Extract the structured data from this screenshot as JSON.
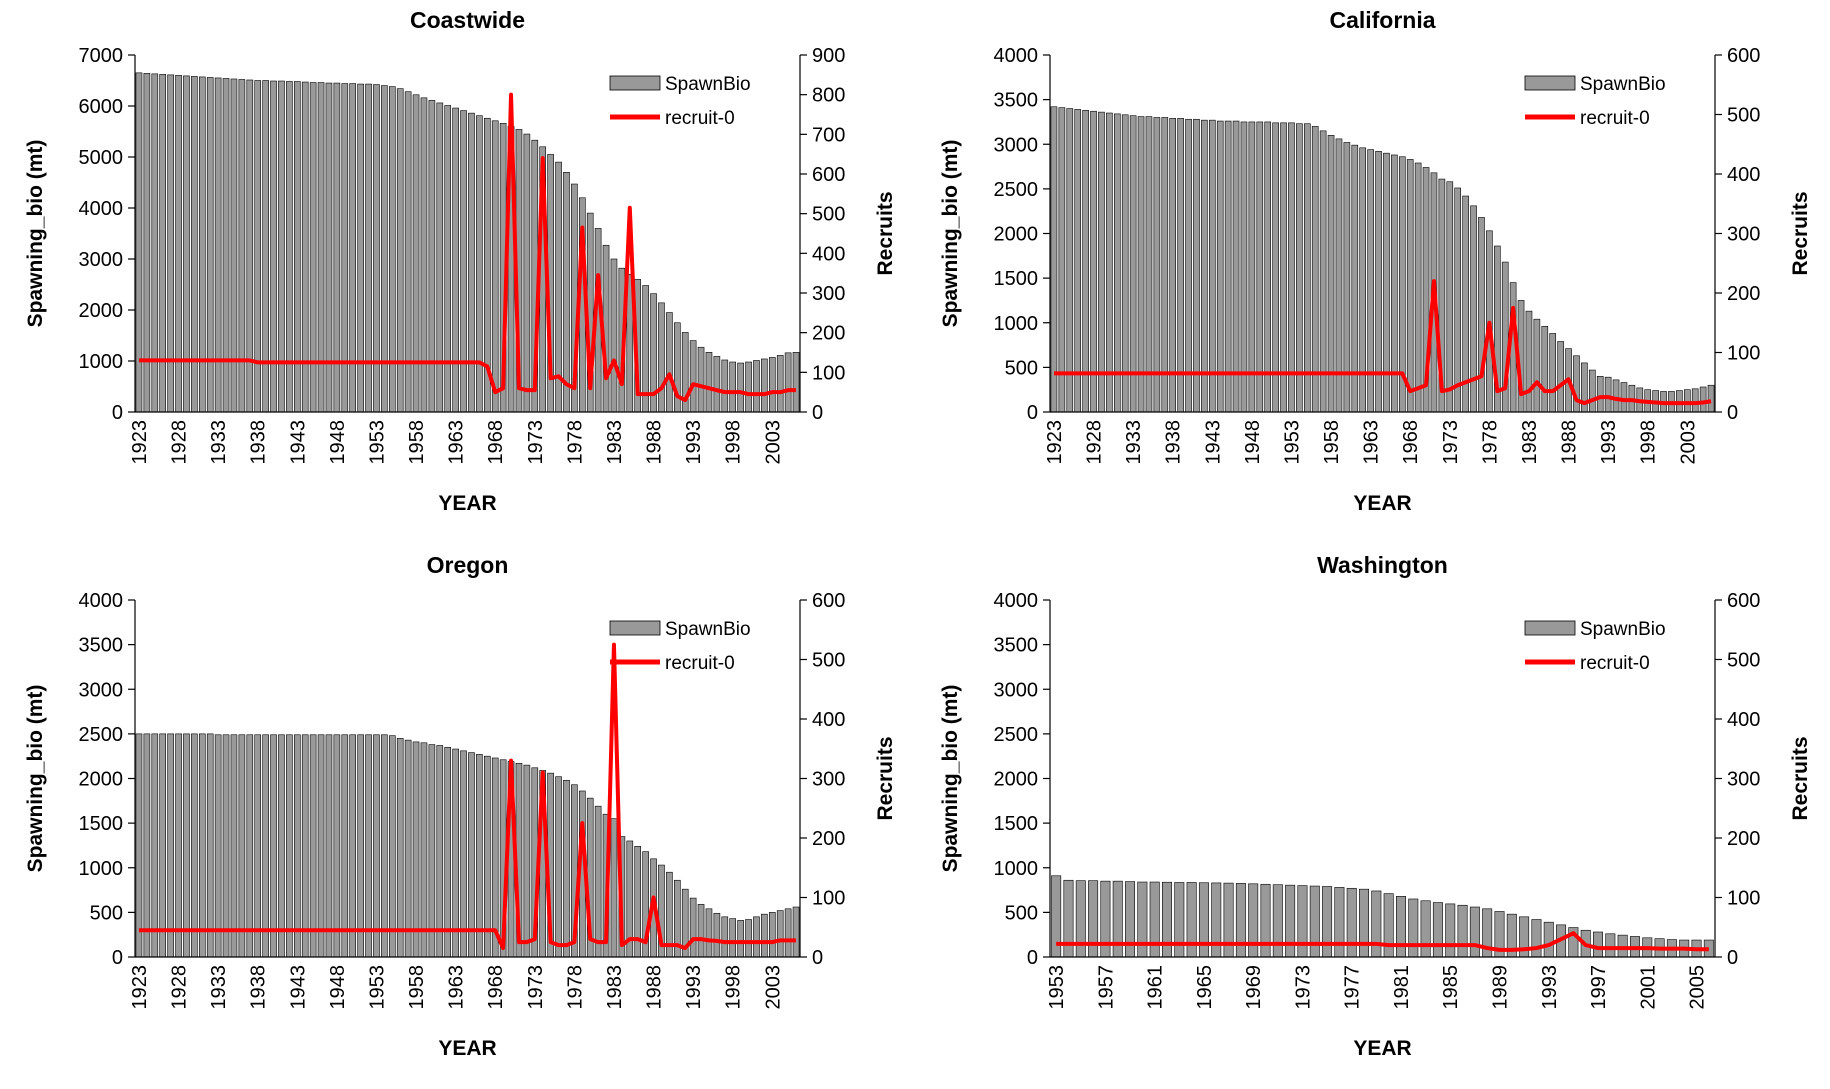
{
  "chart_data": [
    {
      "type": "bar",
      "title": "Coastwide",
      "xlabel": "YEAR",
      "ylabel": "Spawning_bio (mt)",
      "y2label": "Recruits",
      "categories": [
        "1923",
        null,
        null,
        null,
        null,
        "1928",
        null,
        null,
        null,
        null,
        "1933",
        null,
        null,
        null,
        null,
        "1938",
        null,
        null,
        null,
        null,
        "1943",
        null,
        null,
        null,
        null,
        "1948",
        null,
        null,
        null,
        null,
        "1953",
        null,
        null,
        null,
        null,
        "1958",
        null,
        null,
        null,
        null,
        "1963",
        null,
        null,
        null,
        null,
        "1968",
        null,
        null,
        null,
        null,
        "1973",
        null,
        null,
        null,
        null,
        "1978",
        null,
        null,
        null,
        null,
        "1983",
        null,
        null,
        null,
        null,
        "1988",
        null,
        null,
        null,
        null,
        "1993",
        null,
        null,
        null,
        null,
        "1998",
        null,
        null,
        null,
        null,
        "2003",
        null,
        null,
        null
      ],
      "series": [
        {
          "name": "SpawnBio",
          "type": "bar",
          "color": "#999999",
          "values": [
            6650,
            6640,
            6630,
            6620,
            6610,
            6600,
            6590,
            6580,
            6570,
            6560,
            6550,
            6540,
            6530,
            6520,
            6510,
            6500,
            6500,
            6490,
            6490,
            6480,
            6480,
            6470,
            6460,
            6460,
            6450,
            6450,
            6440,
            6440,
            6430,
            6430,
            6420,
            6400,
            6380,
            6340,
            6280,
            6220,
            6160,
            6110,
            6060,
            6010,
            5960,
            5910,
            5860,
            5810,
            5760,
            5710,
            5660,
            5600,
            5540,
            5450,
            5330,
            5200,
            5050,
            4900,
            4700,
            4470,
            4200,
            3900,
            3600,
            3270,
            3000,
            2820,
            2700,
            2600,
            2480,
            2320,
            2140,
            1950,
            1750,
            1560,
            1400,
            1270,
            1170,
            1090,
            1020,
            980,
            960,
            980,
            1010,
            1040,
            1070,
            1110,
            1160,
            1170
          ]
        },
        {
          "name": "recruit-0",
          "type": "line",
          "axis": "y2",
          "color": "#ff0000",
          "values": [
            130,
            130,
            130,
            130,
            130,
            130,
            130,
            130,
            130,
            130,
            130,
            130,
            130,
            130,
            130,
            125,
            125,
            125,
            125,
            125,
            125,
            125,
            125,
            125,
            125,
            125,
            125,
            125,
            125,
            125,
            125,
            125,
            125,
            125,
            125,
            125,
            125,
            125,
            125,
            125,
            125,
            125,
            125,
            125,
            115,
            50,
            60,
            800,
            60,
            55,
            55,
            640,
            85,
            90,
            70,
            60,
            465,
            60,
            345,
            85,
            130,
            70,
            515,
            45,
            45,
            45,
            60,
            95,
            40,
            30,
            70,
            65,
            60,
            55,
            50,
            50,
            50,
            45,
            45,
            45,
            50,
            50,
            55,
            55
          ]
        }
      ],
      "ylim": [
        0,
        7000
      ],
      "yticks": [
        0,
        1000,
        2000,
        3000,
        4000,
        5000,
        6000,
        7000
      ],
      "y2lim": [
        0,
        900
      ],
      "y2ticks": [
        0,
        100,
        200,
        300,
        400,
        500,
        600,
        700,
        800,
        900
      ]
    },
    {
      "type": "bar",
      "title": "California",
      "xlabel": "YEAR",
      "ylabel": "Spawning_bio (mt)",
      "y2label": "Recruits",
      "categories": [
        "1923",
        null,
        null,
        null,
        null,
        "1928",
        null,
        null,
        null,
        null,
        "1933",
        null,
        null,
        null,
        null,
        "1938",
        null,
        null,
        null,
        null,
        "1943",
        null,
        null,
        null,
        null,
        "1948",
        null,
        null,
        null,
        null,
        "1953",
        null,
        null,
        null,
        null,
        "1958",
        null,
        null,
        null,
        null,
        "1963",
        null,
        null,
        null,
        null,
        "1968",
        null,
        null,
        null,
        null,
        "1973",
        null,
        null,
        null,
        null,
        "1978",
        null,
        null,
        null,
        null,
        "1983",
        null,
        null,
        null,
        null,
        "1988",
        null,
        null,
        null,
        null,
        "1993",
        null,
        null,
        null,
        null,
        "1998",
        null,
        null,
        null,
        null,
        "2003",
        null,
        null,
        null
      ],
      "series": [
        {
          "name": "SpawnBio",
          "type": "bar",
          "color": "#999999",
          "values": [
            3420,
            3410,
            3400,
            3390,
            3380,
            3370,
            3360,
            3350,
            3340,
            3330,
            3320,
            3310,
            3310,
            3300,
            3300,
            3290,
            3290,
            3280,
            3280,
            3270,
            3270,
            3260,
            3260,
            3260,
            3250,
            3250,
            3250,
            3250,
            3240,
            3240,
            3240,
            3230,
            3230,
            3200,
            3150,
            3100,
            3060,
            3020,
            2990,
            2960,
            2940,
            2920,
            2900,
            2880,
            2860,
            2830,
            2790,
            2740,
            2680,
            2610,
            2580,
            2510,
            2420,
            2310,
            2180,
            2030,
            1860,
            1680,
            1450,
            1250,
            1130,
            1040,
            960,
            880,
            790,
            710,
            630,
            550,
            470,
            400,
            390,
            360,
            330,
            300,
            270,
            250,
            240,
            230,
            230,
            240,
            250,
            260,
            280,
            300
          ]
        },
        {
          "name": "recruit-0",
          "type": "line",
          "axis": "y2",
          "color": "#ff0000",
          "values": [
            65,
            65,
            65,
            65,
            65,
            65,
            65,
            65,
            65,
            65,
            65,
            65,
            65,
            65,
            65,
            65,
            65,
            65,
            65,
            65,
            65,
            65,
            65,
            65,
            65,
            65,
            65,
            65,
            65,
            65,
            65,
            65,
            65,
            65,
            65,
            65,
            65,
            65,
            65,
            65,
            65,
            65,
            65,
            65,
            65,
            35,
            40,
            45,
            220,
            35,
            38,
            45,
            50,
            55,
            60,
            150,
            35,
            40,
            175,
            30,
            35,
            50,
            35,
            35,
            45,
            55,
            20,
            15,
            20,
            25,
            25,
            22,
            20,
            20,
            18,
            17,
            16,
            15,
            15,
            15,
            15,
            15,
            16,
            18
          ]
        }
      ],
      "ylim": [
        0,
        4000
      ],
      "yticks": [
        0,
        500,
        1000,
        1500,
        2000,
        2500,
        3000,
        3500,
        4000
      ],
      "y2lim": [
        0,
        600
      ],
      "y2ticks": [
        0,
        100,
        200,
        300,
        400,
        500,
        600
      ]
    },
    {
      "type": "bar",
      "title": "Oregon",
      "xlabel": "YEAR",
      "ylabel": "Spawning_bio (mt)",
      "y2label": "Recruits",
      "categories": [
        "1923",
        null,
        null,
        null,
        null,
        "1928",
        null,
        null,
        null,
        null,
        "1933",
        null,
        null,
        null,
        null,
        "1938",
        null,
        null,
        null,
        null,
        "1943",
        null,
        null,
        null,
        null,
        "1948",
        null,
        null,
        null,
        null,
        "1953",
        null,
        null,
        null,
        null,
        "1958",
        null,
        null,
        null,
        null,
        "1963",
        null,
        null,
        null,
        null,
        "1968",
        null,
        null,
        null,
        null,
        "1973",
        null,
        null,
        null,
        null,
        "1978",
        null,
        null,
        null,
        null,
        "1983",
        null,
        null,
        null,
        null,
        "1988",
        null,
        null,
        null,
        null,
        "1993",
        null,
        null,
        null,
        null,
        "1998",
        null,
        null,
        null,
        null,
        "2003",
        null,
        null,
        null
      ],
      "series": [
        {
          "name": "SpawnBio",
          "type": "bar",
          "color": "#999999",
          "values": [
            2500,
            2500,
            2500,
            2500,
            2500,
            2500,
            2500,
            2500,
            2500,
            2500,
            2490,
            2490,
            2490,
            2490,
            2490,
            2490,
            2490,
            2490,
            2490,
            2490,
            2490,
            2490,
            2490,
            2490,
            2490,
            2490,
            2490,
            2490,
            2490,
            2490,
            2490,
            2490,
            2480,
            2450,
            2430,
            2410,
            2400,
            2380,
            2370,
            2350,
            2330,
            2310,
            2290,
            2270,
            2250,
            2230,
            2210,
            2190,
            2170,
            2150,
            2120,
            2090,
            2060,
            2020,
            1980,
            1930,
            1860,
            1780,
            1690,
            1600,
            1550,
            1350,
            1300,
            1240,
            1180,
            1100,
            1030,
            950,
            860,
            760,
            660,
            590,
            540,
            490,
            450,
            430,
            410,
            420,
            450,
            480,
            500,
            520,
            540,
            560
          ]
        },
        {
          "name": "recruit-0",
          "type": "line",
          "axis": "y2",
          "color": "#ff0000",
          "values": [
            45,
            45,
            45,
            45,
            45,
            45,
            45,
            45,
            45,
            45,
            45,
            45,
            45,
            45,
            45,
            45,
            45,
            45,
            45,
            45,
            45,
            45,
            45,
            45,
            45,
            45,
            45,
            45,
            45,
            45,
            45,
            45,
            45,
            45,
            45,
            45,
            45,
            45,
            45,
            45,
            45,
            45,
            45,
            45,
            45,
            45,
            15,
            330,
            25,
            25,
            30,
            310,
            25,
            20,
            20,
            25,
            225,
            30,
            25,
            25,
            525,
            20,
            30,
            30,
            25,
            100,
            20,
            20,
            20,
            15,
            30,
            30,
            28,
            27,
            25,
            25,
            25,
            25,
            25,
            25,
            25,
            28,
            28,
            28
          ]
        }
      ],
      "ylim": [
        0,
        4000
      ],
      "yticks": [
        0,
        500,
        1000,
        1500,
        2000,
        2500,
        3000,
        3500,
        4000
      ],
      "y2lim": [
        0,
        600
      ],
      "y2ticks": [
        0,
        100,
        200,
        300,
        400,
        500,
        600
      ]
    },
    {
      "type": "bar",
      "title": "Washington",
      "xlabel": "YEAR",
      "ylabel": "Spawning_bio (mt)",
      "y2label": "Recruits",
      "categories": [
        "1953",
        null,
        null,
        null,
        "1957",
        null,
        null,
        null,
        "1961",
        null,
        null,
        null,
        "1965",
        null,
        null,
        null,
        "1969",
        null,
        null,
        null,
        "1973",
        null,
        null,
        null,
        "1977",
        null,
        null,
        null,
        "1981",
        null,
        null,
        null,
        "1985",
        null,
        null,
        null,
        "1989",
        null,
        null,
        null,
        "1993",
        null,
        null,
        null,
        "1997",
        null,
        null,
        null,
        "2001",
        null,
        null,
        null,
        "2005",
        null
      ],
      "series": [
        {
          "name": "SpawnBio",
          "type": "bar",
          "color": "#999999",
          "values": [
            910,
            860,
            855,
            855,
            850,
            850,
            845,
            840,
            840,
            838,
            835,
            835,
            832,
            830,
            828,
            825,
            820,
            815,
            810,
            805,
            800,
            795,
            790,
            780,
            770,
            760,
            740,
            710,
            680,
            650,
            630,
            610,
            595,
            580,
            560,
            540,
            510,
            480,
            450,
            420,
            390,
            360,
            330,
            300,
            280,
            260,
            245,
            230,
            215,
            205,
            195,
            190,
            190,
            190
          ]
        },
        {
          "name": "recruit-0",
          "type": "line",
          "axis": "y2",
          "color": "#ff0000",
          "values": [
            22,
            22,
            22,
            22,
            22,
            22,
            22,
            22,
            22,
            22,
            22,
            22,
            22,
            22,
            22,
            22,
            22,
            22,
            22,
            22,
            22,
            22,
            22,
            22,
            22,
            22,
            22,
            20,
            20,
            20,
            20,
            20,
            20,
            20,
            20,
            15,
            12,
            12,
            13,
            15,
            20,
            30,
            40,
            20,
            15,
            15,
            15,
            15,
            15,
            14,
            14,
            14,
            13,
            13
          ]
        }
      ],
      "ylim": [
        0,
        4000
      ],
      "yticks": [
        0,
        500,
        1000,
        1500,
        2000,
        2500,
        3000,
        3500,
        4000
      ],
      "y2lim": [
        0,
        600
      ],
      "y2ticks": [
        0,
        100,
        200,
        300,
        400,
        500,
        600
      ]
    }
  ]
}
